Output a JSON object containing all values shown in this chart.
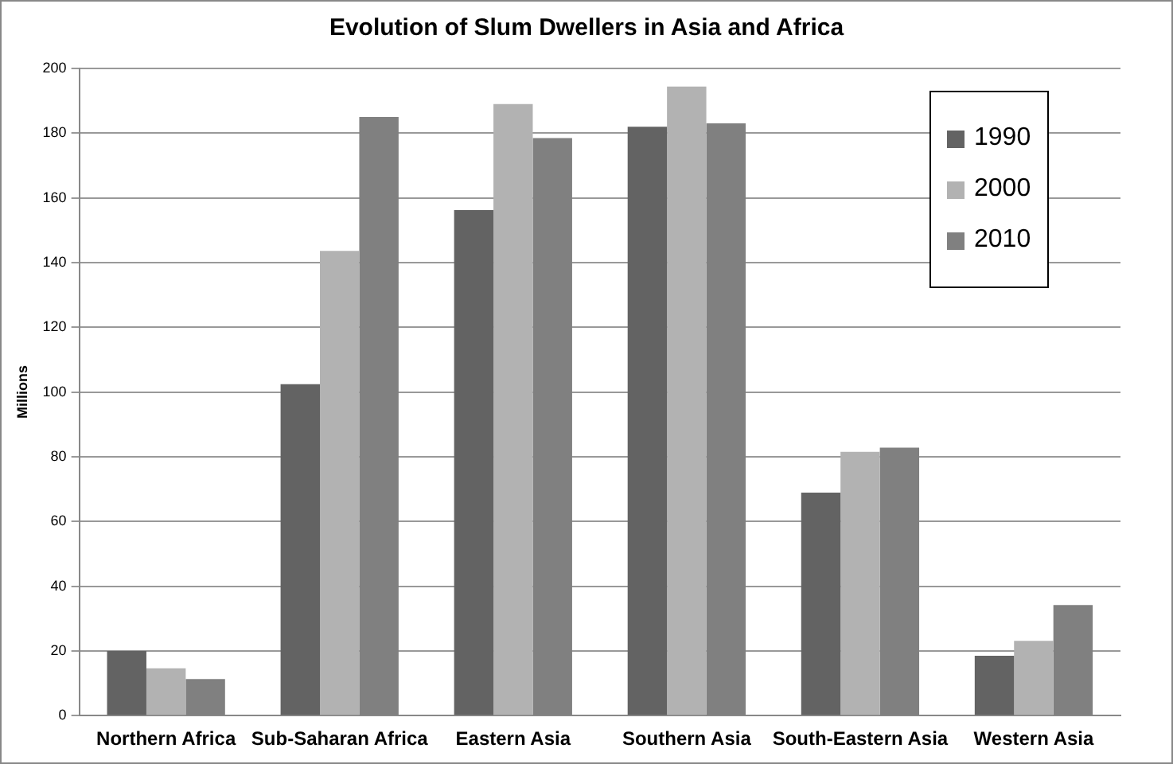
{
  "chart_data": {
    "type": "bar",
    "title": "Evolution of Slum Dwellers in Asia and Africa",
    "ylabel": "Millions",
    "categories": [
      "Northern Africa",
      "Sub-Saharan Africa",
      "Eastern Asia",
      "Southern Asia",
      "South-Eastern Asia",
      "Western Asia"
    ],
    "series": [
      {
        "name": "1990",
        "color": "#636363",
        "values": [
          20,
          102.4,
          156.2,
          182,
          68.9,
          18.5
        ]
      },
      {
        "name": "2000",
        "color": "#b2b2b2",
        "values": [
          14.6,
          143.6,
          189,
          194.4,
          81.5,
          23.1
        ]
      },
      {
        "name": "2010",
        "color": "#808080",
        "values": [
          11.3,
          185,
          178.5,
          183,
          82.8,
          34.2
        ]
      }
    ],
    "ylim": [
      0,
      200
    ],
    "yticks": [
      0,
      20,
      40,
      60,
      80,
      100,
      120,
      140,
      160,
      180,
      200
    ],
    "grid": "y",
    "legend": "top right"
  }
}
